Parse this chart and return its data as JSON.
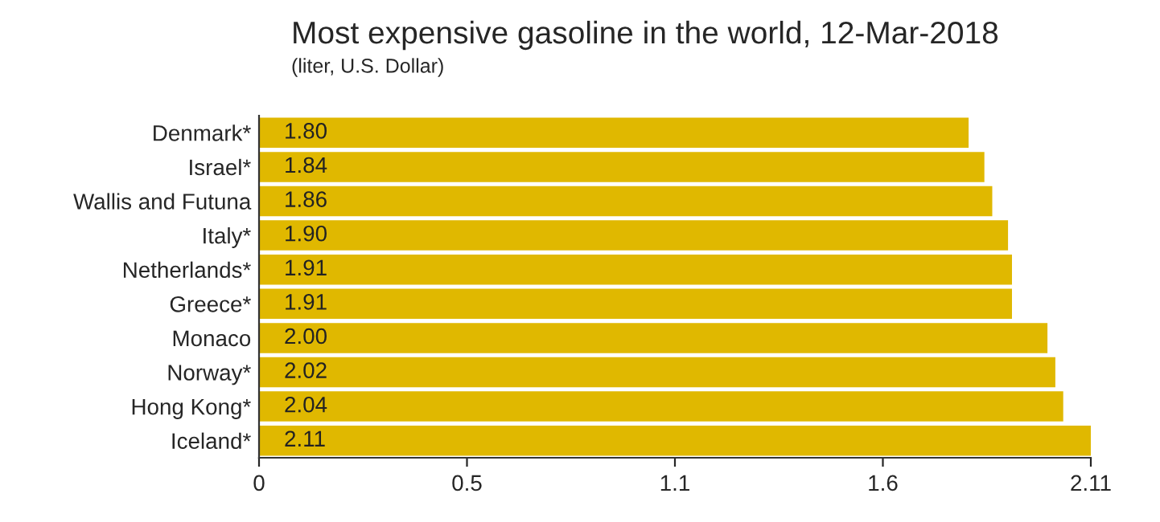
{
  "chart_data": {
    "type": "bar",
    "orientation": "horizontal",
    "title": "Most expensive gasoline in the world, 12-Mar-2018",
    "subtitle": "(liter, U.S. Dollar)",
    "categories": [
      "Denmark*",
      "Israel*",
      "Wallis and Futuna",
      "Italy*",
      "Netherlands*",
      "Greece*",
      "Monaco",
      "Norway*",
      "Hong Kong*",
      "Iceland*"
    ],
    "values": [
      1.8,
      1.84,
      1.86,
      1.9,
      1.91,
      1.91,
      2.0,
      2.02,
      2.04,
      2.11
    ],
    "value_labels": [
      "1.80",
      "1.84",
      "1.86",
      "1.90",
      "1.91",
      "1.91",
      "2.00",
      "2.02",
      "2.04",
      "2.11"
    ],
    "color": "#e0b800",
    "xlim": [
      0,
      2.11
    ],
    "xticks": [
      0,
      {
        "value": 0.5275,
        "label": "0.5"
      },
      {
        "value": 1.055,
        "label": "1.1"
      },
      {
        "value": 1.5825,
        "label": "1.6"
      },
      2.11
    ],
    "grid": false,
    "legend": false
  }
}
